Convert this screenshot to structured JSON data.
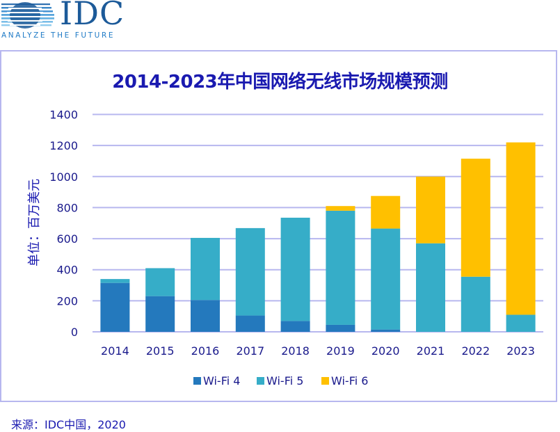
{
  "logo": {
    "name": "IDC",
    "tagline": "ANALYZE THE FUTURE"
  },
  "source_note": "来源：IDC中国，2020",
  "colors": {
    "wifi4": "#2479bd",
    "wifi5": "#36adc8",
    "wifi6": "#ffc000",
    "grid": "#b7b7ef",
    "text": "#1a1a8c",
    "title": "#1a1ab0"
  },
  "chart_data": {
    "type": "bar",
    "stacked": true,
    "title": "2014-2023年中国网络无线市场规模预测",
    "xlabel": "",
    "ylabel": "单位：百万美元",
    "categories": [
      "2014",
      "2015",
      "2016",
      "2017",
      "2018",
      "2019",
      "2020",
      "2021",
      "2022",
      "2023"
    ],
    "series": [
      {
        "name": "Wi-Fi 4",
        "values": [
          315,
          230,
          205,
          105,
          70,
          45,
          15,
          0,
          0,
          0
        ]
      },
      {
        "name": "Wi-Fi 5",
        "values": [
          25,
          180,
          400,
          563,
          665,
          735,
          650,
          570,
          355,
          110
        ]
      },
      {
        "name": "Wi-Fi 6",
        "values": [
          0,
          0,
          0,
          0,
          0,
          30,
          210,
          430,
          760,
          1110
        ]
      }
    ],
    "ylim": [
      0,
      1400
    ],
    "yticks": [
      0,
      200,
      400,
      600,
      800,
      1000,
      1200,
      1400
    ],
    "grid": true,
    "legend_position": "bottom"
  }
}
